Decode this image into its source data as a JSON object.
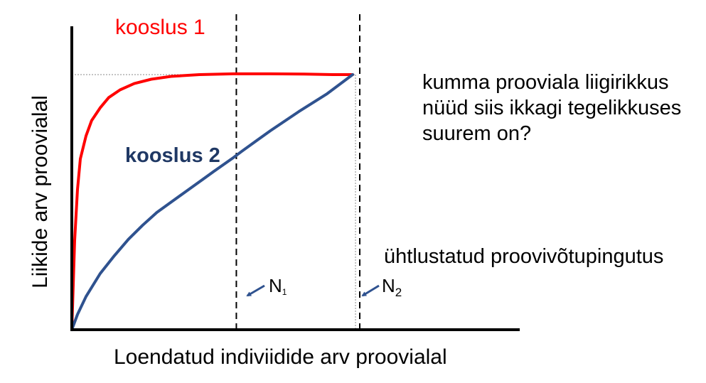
{
  "chart_data": {
    "type": "line",
    "xlabel": "Loendatud indiviidide arv proovialal",
    "ylabel": "Liikide arv proovialal",
    "xlim": [
      0,
      100
    ],
    "ylim": [
      0,
      100
    ],
    "axis_ticks": false,
    "grid": false,
    "series": [
      {
        "name": "kooslus 1",
        "color": "#ff0000",
        "x": [
          0,
          1,
          2,
          3,
          5,
          7,
          10,
          13,
          17,
          22,
          28,
          35,
          45,
          57,
          70,
          82,
          92,
          99
        ],
        "y": [
          0,
          35,
          55,
          67,
          76,
          82,
          87,
          91,
          94,
          96.5,
          98.2,
          99.3,
          100,
          100.3,
          100.3,
          100.2,
          100,
          100
        ]
      },
      {
        "name": "kooslus 2",
        "color": "#2f528f",
        "x": [
          0,
          2,
          5,
          10,
          15,
          20,
          25,
          30,
          35,
          40,
          45,
          50,
          57,
          60,
          65,
          70,
          80,
          90,
          99
        ],
        "y": [
          0,
          6,
          13,
          22,
          29,
          35.5,
          41,
          46,
          50,
          54,
          58,
          62,
          67.5,
          70,
          74,
          78,
          85.5,
          92.5,
          100
        ]
      }
    ],
    "reference_lines": [
      {
        "axis": "x",
        "value": 58,
        "style": "dashed",
        "label": "N",
        "subscript": "1"
      },
      {
        "axis": "x",
        "value": 100,
        "style": "dashed",
        "label": "N",
        "subscript": "2"
      }
    ],
    "annotations": [
      "kumma prooviala liigirikkus nüüd siis ikkagi tegelikkuses suurem on?",
      "ühtlustatud proovivõtupingutus"
    ]
  },
  "labels": {
    "ylabel": "Liikide arv proovialal",
    "xlabel": "Loendatud indiviidide arv proovialal",
    "series1": "kooslus 1",
    "series2": "kooslus 2",
    "question": "kumma prooviala liigirikkus nüüd siis ikkagi tegelikkuses suurem on?",
    "effort": "ühtlustatud proovivõtupingutus",
    "n1_main": "N",
    "n1_sub": "1",
    "n2_main": "N",
    "n2_sub": "2"
  }
}
